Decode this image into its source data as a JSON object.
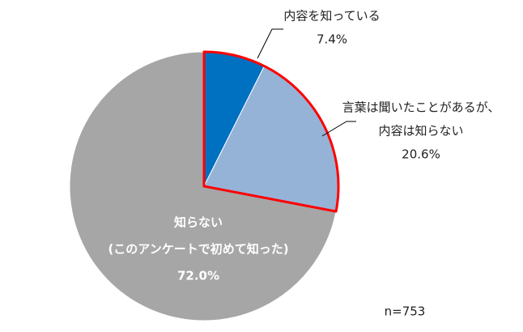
{
  "chart_data": {
    "type": "pie",
    "categories": [
      [
        "内容を知っている"
      ],
      [
        "言葉は聞いたことがあるが、",
        "内容は知らない"
      ],
      [
        "知らない",
        "(このアンケートで初めて知った)"
      ]
    ],
    "values": [
      7.4,
      20.6,
      72.0
    ],
    "value_labels": [
      "7.4%",
      "20.6%",
      "72.0%"
    ],
    "colors": [
      "#0070c0",
      "#95b3d7",
      "#a6a6a6"
    ],
    "highlight": {
      "color": "#ff0000",
      "slices": [
        0,
        1
      ]
    },
    "annotation": "n=753"
  }
}
